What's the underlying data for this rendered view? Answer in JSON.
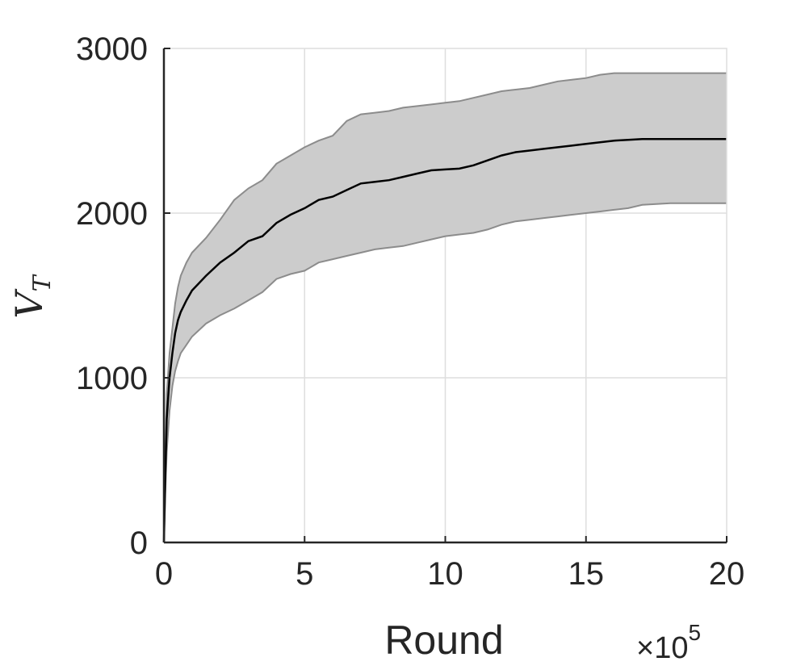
{
  "chart_data": {
    "type": "area",
    "title": "",
    "xlabel": "Round",
    "ylabel": "V",
    "ylabel_subscript": "T",
    "x_multiplier": "×10",
    "x_multiplier_exponent": "5",
    "xlim": [
      0,
      20
    ],
    "ylim": [
      0,
      3000
    ],
    "xticks": [
      0,
      5,
      10,
      15,
      20
    ],
    "yticks": [
      0,
      1000,
      2000,
      3000
    ],
    "grid": true,
    "colors": {
      "band_fill": "#cccccc",
      "band_edge": "#8c8c8c",
      "mean_line": "#000000",
      "axis": "#262626",
      "grid": "#dedede"
    },
    "x": [
      0,
      0.05,
      0.1,
      0.2,
      0.3,
      0.4,
      0.5,
      0.6,
      0.8,
      1.0,
      1.5,
      2,
      2.5,
      3,
      3.5,
      4,
      4.5,
      5,
      5.5,
      6,
      6.5,
      7,
      7.5,
      8,
      8.5,
      9,
      9.5,
      10,
      10.5,
      11,
      11.5,
      12,
      12.5,
      13,
      13.5,
      14,
      14.5,
      15,
      15.5,
      16,
      16.5,
      17,
      18,
      19,
      20
    ],
    "series": [
      {
        "role": "mean",
        "values": [
          0,
          400,
          750,
          1000,
          1150,
          1270,
          1350,
          1400,
          1470,
          1530,
          1620,
          1700,
          1760,
          1830,
          1860,
          1940,
          1990,
          2030,
          2080,
          2100,
          2140,
          2180,
          2190,
          2200,
          2220,
          2240,
          2260,
          2265,
          2270,
          2290,
          2320,
          2350,
          2370,
          2380,
          2390,
          2400,
          2410,
          2420,
          2430,
          2440,
          2445,
          2450,
          2450,
          2450,
          2450
        ]
      },
      {
        "role": "upper",
        "values": [
          0,
          500,
          900,
          1150,
          1300,
          1450,
          1550,
          1620,
          1700,
          1760,
          1850,
          1960,
          2080,
          2150,
          2200,
          2300,
          2350,
          2400,
          2440,
          2470,
          2560,
          2600,
          2610,
          2620,
          2640,
          2650,
          2660,
          2670,
          2680,
          2700,
          2720,
          2740,
          2750,
          2760,
          2780,
          2800,
          2810,
          2820,
          2840,
          2850,
          2850,
          2850,
          2850,
          2850,
          2850
        ]
      },
      {
        "role": "lower",
        "values": [
          0,
          300,
          550,
          800,
          950,
          1040,
          1100,
          1150,
          1200,
          1250,
          1330,
          1380,
          1420,
          1470,
          1520,
          1600,
          1630,
          1650,
          1700,
          1720,
          1740,
          1760,
          1780,
          1790,
          1800,
          1820,
          1840,
          1860,
          1870,
          1880,
          1900,
          1930,
          1950,
          1960,
          1970,
          1980,
          1990,
          2000,
          2010,
          2020,
          2030,
          2050,
          2060,
          2060,
          2060
        ]
      }
    ]
  }
}
